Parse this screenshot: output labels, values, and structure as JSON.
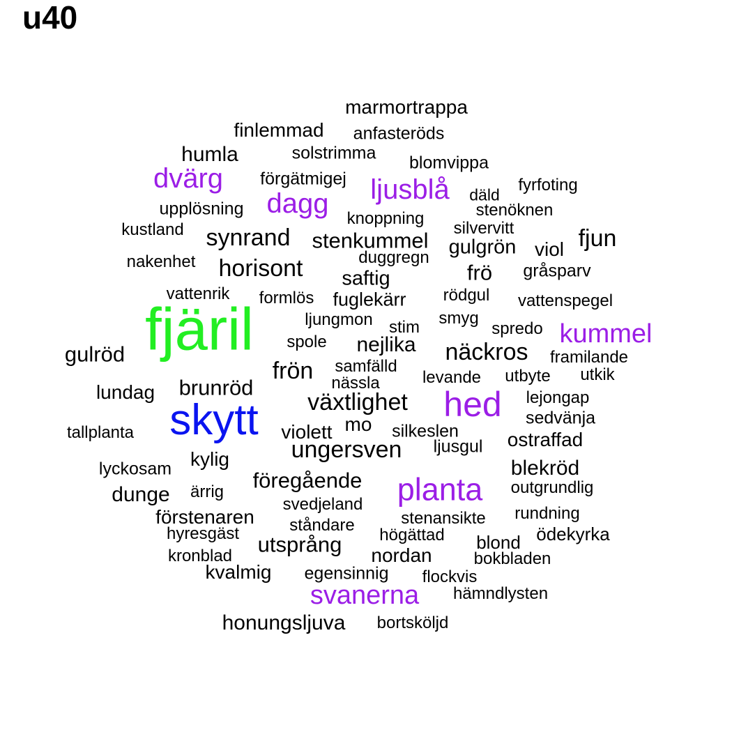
{
  "title": "u40",
  "colors": {
    "default": "#000000",
    "green": "#22ee22",
    "blue": "#0a14f0",
    "purple": "#9b1ee6"
  },
  "words": [
    {
      "text": "marmortrappa",
      "color": "default"
    },
    {
      "text": "finlemmad",
      "color": "default"
    },
    {
      "text": "anfasteröds",
      "color": "default"
    },
    {
      "text": "humla",
      "color": "default"
    },
    {
      "text": "solstrimma",
      "color": "default"
    },
    {
      "text": "blomvippa",
      "color": "default"
    },
    {
      "text": "dvärg",
      "color": "purple"
    },
    {
      "text": "förgätmigej",
      "color": "default"
    },
    {
      "text": "ljusblå",
      "color": "purple"
    },
    {
      "text": "fyrfoting",
      "color": "default"
    },
    {
      "text": "däld",
      "color": "default"
    },
    {
      "text": "dagg",
      "color": "purple"
    },
    {
      "text": "upplösning",
      "color": "default"
    },
    {
      "text": "stenöknen",
      "color": "default"
    },
    {
      "text": "knoppning",
      "color": "default"
    },
    {
      "text": "kustland",
      "color": "default"
    },
    {
      "text": "silvervitt",
      "color": "default"
    },
    {
      "text": "synrand",
      "color": "default"
    },
    {
      "text": "stenkummel",
      "color": "default"
    },
    {
      "text": "fjun",
      "color": "default"
    },
    {
      "text": "gulgrön",
      "color": "default"
    },
    {
      "text": "viol",
      "color": "default"
    },
    {
      "text": "nakenhet",
      "color": "default"
    },
    {
      "text": "duggregn",
      "color": "default"
    },
    {
      "text": "horisont",
      "color": "default"
    },
    {
      "text": "frö",
      "color": "default"
    },
    {
      "text": "gråsparv",
      "color": "default"
    },
    {
      "text": "saftig",
      "color": "default"
    },
    {
      "text": "vattenrik",
      "color": "default"
    },
    {
      "text": "formlös",
      "color": "default"
    },
    {
      "text": "rödgul",
      "color": "default"
    },
    {
      "text": "fuglekärr",
      "color": "default"
    },
    {
      "text": "vattenspegel",
      "color": "default"
    },
    {
      "text": "fjäril",
      "color": "green"
    },
    {
      "text": "ljungmon",
      "color": "default"
    },
    {
      "text": "smyg",
      "color": "default"
    },
    {
      "text": "stim",
      "color": "default"
    },
    {
      "text": "spredo",
      "color": "default"
    },
    {
      "text": "kummel",
      "color": "purple"
    },
    {
      "text": "spole",
      "color": "default"
    },
    {
      "text": "nejlika",
      "color": "default"
    },
    {
      "text": "näckros",
      "color": "default"
    },
    {
      "text": "gulröd",
      "color": "default"
    },
    {
      "text": "framilande",
      "color": "default"
    },
    {
      "text": "samfälld",
      "color": "default"
    },
    {
      "text": "frön",
      "color": "default"
    },
    {
      "text": "utbyte",
      "color": "default"
    },
    {
      "text": "utkik",
      "color": "default"
    },
    {
      "text": "levande",
      "color": "default"
    },
    {
      "text": "nässla",
      "color": "default"
    },
    {
      "text": "brunröd",
      "color": "default"
    },
    {
      "text": "lundag",
      "color": "default"
    },
    {
      "text": "växtlighet",
      "color": "default"
    },
    {
      "text": "hed",
      "color": "purple"
    },
    {
      "text": "lejongap",
      "color": "default"
    },
    {
      "text": "skytt",
      "color": "blue"
    },
    {
      "text": "sedvänja",
      "color": "default"
    },
    {
      "text": "tallplanta",
      "color": "default"
    },
    {
      "text": "mo",
      "color": "default"
    },
    {
      "text": "violett",
      "color": "default"
    },
    {
      "text": "silkeslen",
      "color": "default"
    },
    {
      "text": "ostraffad",
      "color": "default"
    },
    {
      "text": "ungersven",
      "color": "default"
    },
    {
      "text": "ljusgul",
      "color": "default"
    },
    {
      "text": "kylig",
      "color": "default"
    },
    {
      "text": "blekröd",
      "color": "default"
    },
    {
      "text": "lyckosam",
      "color": "default"
    },
    {
      "text": "föregående",
      "color": "default"
    },
    {
      "text": "planta",
      "color": "purple"
    },
    {
      "text": "outgrundlig",
      "color": "default"
    },
    {
      "text": "dunge",
      "color": "default"
    },
    {
      "text": "ärrig",
      "color": "default"
    },
    {
      "text": "svedjeland",
      "color": "default"
    },
    {
      "text": "rundning",
      "color": "default"
    },
    {
      "text": "förstenaren",
      "color": "default"
    },
    {
      "text": "stenansikte",
      "color": "default"
    },
    {
      "text": "ståndare",
      "color": "default"
    },
    {
      "text": "ödekyrka",
      "color": "default"
    },
    {
      "text": "hyresgäst",
      "color": "default"
    },
    {
      "text": "högättad",
      "color": "default"
    },
    {
      "text": "blond",
      "color": "default"
    },
    {
      "text": "utsprång",
      "color": "default"
    },
    {
      "text": "kronblad",
      "color": "default"
    },
    {
      "text": "nordan",
      "color": "default"
    },
    {
      "text": "bokbladen",
      "color": "default"
    },
    {
      "text": "kvalmig",
      "color": "default"
    },
    {
      "text": "egensinnig",
      "color": "default"
    },
    {
      "text": "flockvis",
      "color": "default"
    },
    {
      "text": "svanerna",
      "color": "purple"
    },
    {
      "text": "hämndlysten",
      "color": "default"
    },
    {
      "text": "honungsljuva",
      "color": "default"
    },
    {
      "text": "bortsköljd",
      "color": "default"
    }
  ]
}
